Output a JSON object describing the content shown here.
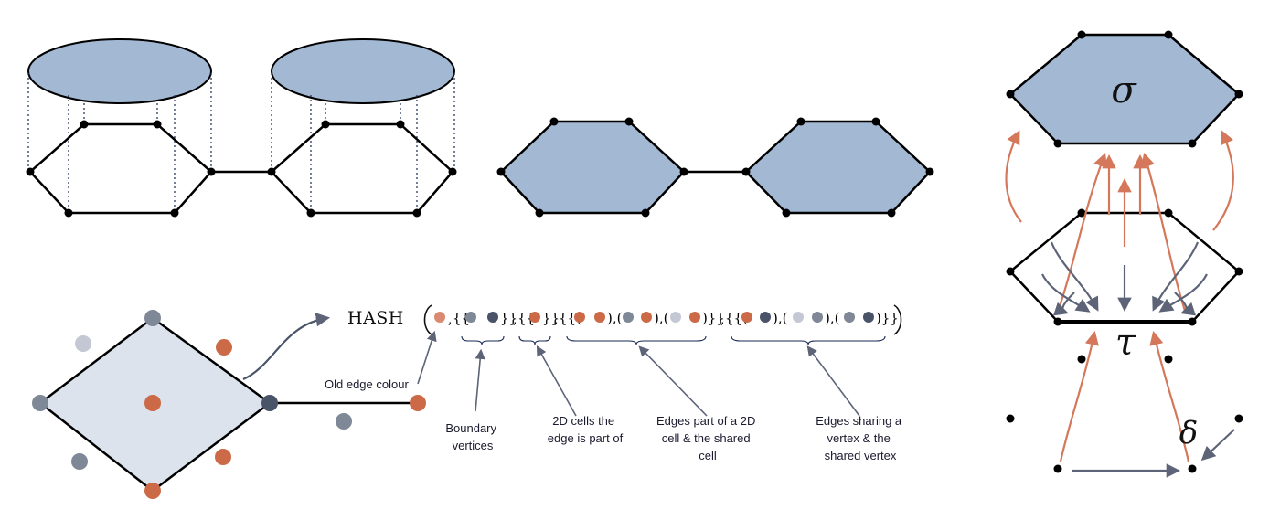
{
  "hash": {
    "function_label": "HASH"
  },
  "annotations": {
    "old_edge_colour": "Old edge colour",
    "boundary_vertices": [
      "Boundary",
      "vertices"
    ],
    "cells_of_edge": [
      "2D cells the",
      "edge is part of"
    ],
    "edges_shared_cell": [
      "Edges part of a 2D",
      "cell & the shared",
      "cell"
    ],
    "edges_shared_vertex": [
      "Edges sharing a",
      "vertex & the",
      "shared vertex"
    ]
  },
  "labels": {
    "sigma": "σ",
    "tau": "τ",
    "delta": "δ"
  },
  "colors": {
    "cell_fill": "#a3b8d3",
    "cell_fill_light": "#dde3ec",
    "orange": "#cc6a48",
    "orange_arrow": "#d4775a",
    "slate_dark": "#4a5468",
    "slate_mid": "#7f8896",
    "slate_light": "#c4c8d4",
    "gray_arrow": "#5d6478"
  }
}
